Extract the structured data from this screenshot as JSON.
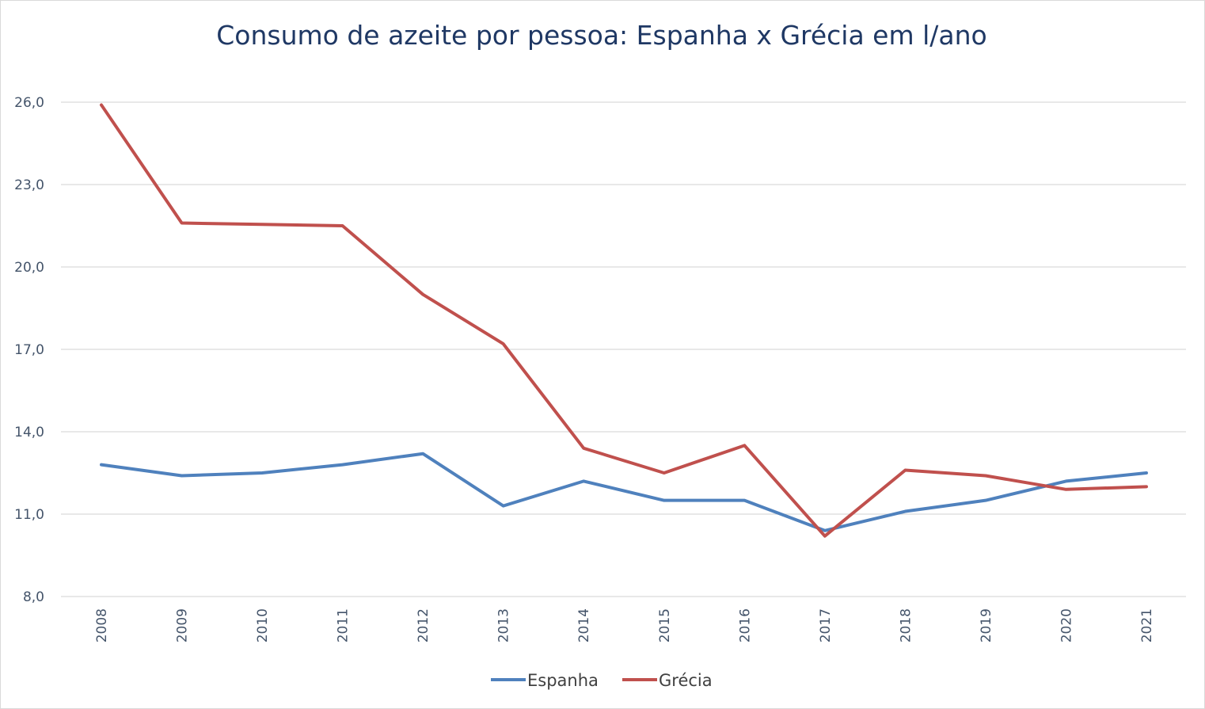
{
  "chart_data": {
    "type": "line",
    "title": "Consumo de azeite por pessoa: Espanha x Grécia em l/ano",
    "xlabel": "",
    "ylabel": "",
    "categories": [
      "2008",
      "2009",
      "2010",
      "2011",
      "2012",
      "2013",
      "2014",
      "2015",
      "2016",
      "2017",
      "2018",
      "2019",
      "2020",
      "2021"
    ],
    "ylim": [
      8,
      26
    ],
    "yticks": [
      8,
      11,
      14,
      17,
      20,
      23,
      26
    ],
    "ytick_labels": [
      "8,0",
      "11,0",
      "14,0",
      "17,0",
      "20,0",
      "23,0",
      "26,0"
    ],
    "grid": true,
    "legend": "bottom",
    "series": [
      {
        "name": "Espanha",
        "color": "#4f81bd",
        "values": [
          12.8,
          12.4,
          12.5,
          12.8,
          13.2,
          11.3,
          12.2,
          11.5,
          11.5,
          10.4,
          11.1,
          11.5,
          12.2,
          12.5
        ]
      },
      {
        "name": "Grécia",
        "color": "#c0504d",
        "values": [
          25.9,
          21.6,
          21.55,
          21.5,
          19.0,
          17.2,
          13.4,
          12.5,
          13.5,
          10.2,
          12.6,
          12.4,
          11.9,
          12.0
        ]
      }
    ]
  }
}
